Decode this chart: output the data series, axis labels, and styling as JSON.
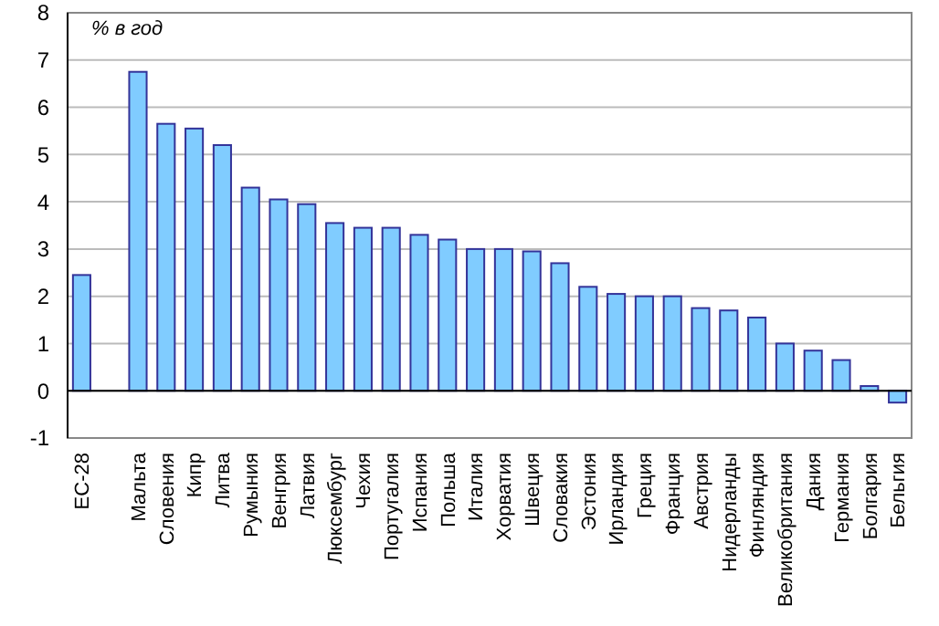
{
  "chart_data": {
    "type": "bar",
    "ylabel": "% в год",
    "categories": [
      "ЕС-28",
      null,
      "Мальта",
      "Словения",
      "Кипр",
      "Литва",
      "Румыния",
      "Венгрия",
      "Латвия",
      "Люксембург",
      "Чехия",
      "Португалия",
      "Испания",
      "Польша",
      "Италия",
      "Хорватия",
      "Швеция",
      "Словакия",
      "Эстония",
      "Ирландия",
      "Греция",
      "Франция",
      "Австрия",
      "Нидерланды",
      "Финляндия",
      "Великобритания",
      "Дания",
      "Германия",
      "Болгария",
      "Бельгия"
    ],
    "values": [
      2.45,
      null,
      6.75,
      5.65,
      5.55,
      5.2,
      4.3,
      4.05,
      3.95,
      3.55,
      3.45,
      3.45,
      3.3,
      3.2,
      3.0,
      3.0,
      2.95,
      2.7,
      2.2,
      2.05,
      2.0,
      2.0,
      1.75,
      1.7,
      1.55,
      1.0,
      0.85,
      0.65,
      0.1,
      -0.25
    ],
    "color": "#80ccff",
    "ylim": [
      -1,
      8
    ],
    "yticks": [
      -1,
      0,
      1,
      2,
      3,
      4,
      5,
      6,
      7,
      8
    ],
    "grid": "y"
  }
}
